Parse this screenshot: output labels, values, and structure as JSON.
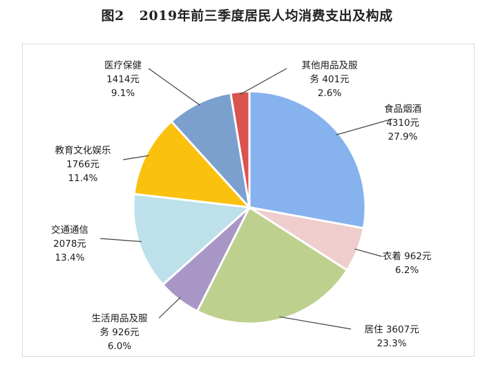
{
  "title": {
    "figure": "图2",
    "text": "2019年前三季度居民人均消费支出及构成"
  },
  "chart_data": {
    "type": "pie",
    "unit": "元",
    "slices": [
      {
        "key": "food",
        "name": "食品烟酒",
        "value": 4310,
        "percent": "27.9%",
        "color": "#86b2ee",
        "lines": [
          "食品烟酒",
          "4310元",
          "27.9%"
        ]
      },
      {
        "key": "clothing",
        "name": "衣着",
        "value": 962,
        "percent": "6.2%",
        "color": "#efcdcd",
        "lines": [
          "衣着 962元",
          "6.2%"
        ]
      },
      {
        "key": "housing",
        "name": "居住",
        "value": 3607,
        "percent": "23.3%",
        "color": "#bdd08e",
        "lines": [
          "居住 3607元",
          "23.3%"
        ]
      },
      {
        "key": "household",
        "name": "生活用品及服务",
        "value": 926,
        "percent": "6.0%",
        "color": "#a897c6",
        "lines": [
          "生活用品及服",
          "务 926元",
          "6.0%"
        ]
      },
      {
        "key": "transport",
        "name": "交通通信",
        "value": 2078,
        "percent": "13.4%",
        "color": "#bde0ea",
        "lines": [
          "交通通信",
          "2078元",
          "13.4%"
        ]
      },
      {
        "key": "education",
        "name": "教育文化娱乐",
        "value": 1766,
        "percent": "11.4%",
        "color": "#fbc10f",
        "lines": [
          "教育文化娱乐",
          "1766元",
          "11.4%"
        ]
      },
      {
        "key": "medical",
        "name": "医疗保健",
        "value": 1414,
        "percent": "9.1%",
        "color": "#7ba0cd",
        "lines": [
          "医疗保健",
          "1414元",
          "9.1%"
        ]
      },
      {
        "key": "other",
        "name": "其他用品及服务",
        "value": 401,
        "percent": "2.6%",
        "color": "#d9534f",
        "lines": [
          "其他用品及服",
          "务 401元",
          "2.6%"
        ]
      }
    ]
  }
}
